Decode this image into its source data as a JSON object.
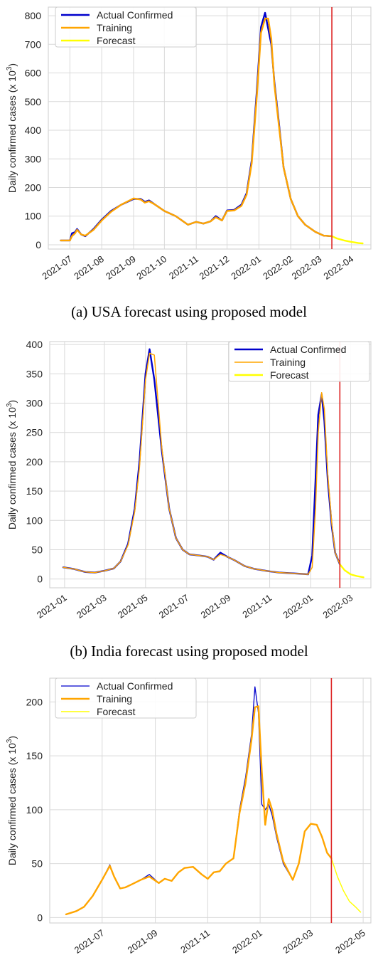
{
  "captions": [
    "(a) USA forecast using proposed model",
    "(b) India forecast using proposed model"
  ],
  "colors": {
    "actual": "#0000cc",
    "training": "#ffa500",
    "forecast": "#ffff00",
    "split": "#dd2222",
    "grid": "#d9d9d9"
  },
  "chart_data": [
    {
      "type": "line",
      "title": "",
      "xlabel": "",
      "ylabel": "Daily confirmed cases (x 10^3)",
      "ylabel_main": "Daily confirmed cases (x 10",
      "ylabel_exp": "3",
      "ylabel_tail": ")",
      "ylim": [
        -15,
        830
      ],
      "xlim": [
        "2021-06-10",
        "2022-04-20"
      ],
      "grid": true,
      "legend": "top-left",
      "yticks": [
        0,
        100,
        200,
        300,
        400,
        500,
        600,
        700,
        800
      ],
      "xticks": [
        "2021-07",
        "2021-08",
        "2021-09",
        "2021-10",
        "2021-11",
        "2021-12",
        "2022-01",
        "2022-02",
        "2022-03",
        "2022-04"
      ],
      "split_date": "2022-03-13",
      "series": [
        {
          "name": "Actual Confirmed",
          "color": "#0000cc",
          "x": [
            "2021-06-22",
            "2021-07-01",
            "2021-07-03",
            "2021-07-06",
            "2021-07-08",
            "2021-07-12",
            "2021-07-16",
            "2021-07-24",
            "2021-08-01",
            "2021-08-10",
            "2021-08-20",
            "2021-09-01",
            "2021-09-08",
            "2021-09-12",
            "2021-09-16",
            "2021-09-22",
            "2021-10-01",
            "2021-10-12",
            "2021-10-24",
            "2021-11-01",
            "2021-11-08",
            "2021-11-15",
            "2021-11-20",
            "2021-11-26",
            "2021-12-01",
            "2021-12-08",
            "2021-12-15",
            "2021-12-20",
            "2021-12-25",
            "2021-12-30",
            "2022-01-03",
            "2022-01-07",
            "2022-01-10",
            "2022-01-13",
            "2022-01-16",
            "2022-01-20",
            "2022-01-25",
            "2022-02-01",
            "2022-02-08",
            "2022-02-15",
            "2022-02-25",
            "2022-03-05",
            "2022-03-13"
          ],
          "y": [
            15,
            15,
            40,
            44,
            55,
            36,
            30,
            55,
            88,
            118,
            140,
            160,
            160,
            150,
            155,
            140,
            118,
            100,
            70,
            80,
            74,
            82,
            100,
            85,
            120,
            122,
            140,
            180,
            295,
            540,
            760,
            810,
            755,
            700,
            570,
            440,
            270,
            160,
            100,
            70,
            45,
            32,
            30
          ]
        },
        {
          "name": "Training",
          "color": "#ffa500",
          "x": [
            "2021-06-22",
            "2021-07-01",
            "2021-07-03",
            "2021-07-06",
            "2021-07-08",
            "2021-07-12",
            "2021-07-16",
            "2021-07-24",
            "2021-08-01",
            "2021-08-10",
            "2021-08-20",
            "2021-09-01",
            "2021-09-08",
            "2021-09-12",
            "2021-09-16",
            "2021-09-22",
            "2021-10-01",
            "2021-10-12",
            "2021-10-24",
            "2021-11-01",
            "2021-11-08",
            "2021-11-15",
            "2021-11-20",
            "2021-11-26",
            "2021-12-01",
            "2021-12-08",
            "2021-12-15",
            "2021-12-20",
            "2021-12-25",
            "2021-12-30",
            "2022-01-03",
            "2022-01-07",
            "2022-01-10",
            "2022-01-13",
            "2022-01-16",
            "2022-01-20",
            "2022-01-25",
            "2022-02-01",
            "2022-02-08",
            "2022-02-15",
            "2022-02-25",
            "2022-03-05",
            "2022-03-13"
          ],
          "y": [
            15,
            15,
            30,
            40,
            52,
            36,
            32,
            52,
            85,
            115,
            140,
            162,
            158,
            147,
            152,
            140,
            118,
            100,
            70,
            80,
            74,
            82,
            96,
            85,
            118,
            120,
            136,
            175,
            285,
            520,
            740,
            790,
            790,
            720,
            560,
            430,
            270,
            160,
            100,
            70,
            45,
            32,
            30
          ]
        },
        {
          "name": "Forecast",
          "color": "#ffff00",
          "x": [
            "2022-03-13",
            "2022-03-18",
            "2022-03-25",
            "2022-04-01",
            "2022-04-08",
            "2022-04-12"
          ],
          "y": [
            30,
            22,
            15,
            10,
            6,
            5
          ]
        }
      ]
    },
    {
      "type": "line",
      "title": "",
      "xlabel": "",
      "ylabel": "Daily confirmed cases (x 10^3)",
      "ylabel_main": "Daily confirmed cases (x 10",
      "ylabel_exp": "3",
      "ylabel_tail": ")",
      "ylim": [
        -15,
        405
      ],
      "xlim": [
        "2020-12-10",
        "2022-03-31"
      ],
      "grid": true,
      "legend": "top-right",
      "yticks": [
        0,
        50,
        100,
        150,
        200,
        250,
        300,
        350,
        400
      ],
      "xticks": [
        "2021-01",
        "2021-03",
        "2021-05",
        "2021-07",
        "2021-09",
        "2021-11",
        "2022-01",
        "2022-03"
      ],
      "split_date": "2022-02-13",
      "series": [
        {
          "name": "Actual Confirmed",
          "color": "#0000cc",
          "x": [
            "2020-12-30",
            "2021-01-15",
            "2021-02-01",
            "2021-02-15",
            "2021-03-01",
            "2021-03-15",
            "2021-03-25",
            "2021-04-05",
            "2021-04-15",
            "2021-04-22",
            "2021-05-01",
            "2021-05-07",
            "2021-05-14",
            "2021-05-25",
            "2021-06-05",
            "2021-06-15",
            "2021-06-25",
            "2021-07-05",
            "2021-07-20",
            "2021-08-01",
            "2021-08-10",
            "2021-08-20",
            "2021-08-30",
            "2021-09-10",
            "2021-09-25",
            "2021-10-10",
            "2021-11-01",
            "2021-11-15",
            "2021-12-01",
            "2021-12-15",
            "2021-12-28",
            "2022-01-03",
            "2022-01-08",
            "2022-01-12",
            "2022-01-17",
            "2022-01-21",
            "2022-01-26",
            "2022-02-01",
            "2022-02-06",
            "2022-02-13"
          ],
          "y": [
            20,
            17,
            12,
            11,
            14,
            18,
            30,
            60,
            120,
            200,
            350,
            392,
            340,
            220,
            120,
            70,
            50,
            42,
            40,
            38,
            33,
            45,
            38,
            32,
            22,
            17,
            13,
            11,
            10,
            9,
            8,
            40,
            170,
            280,
            315,
            270,
            170,
            90,
            45,
            25
          ]
        },
        {
          "name": "Training",
          "color": "#ffa500",
          "x": [
            "2020-12-30",
            "2021-01-15",
            "2021-02-01",
            "2021-02-15",
            "2021-03-01",
            "2021-03-15",
            "2021-03-25",
            "2021-04-05",
            "2021-04-15",
            "2021-04-22",
            "2021-05-01",
            "2021-05-07",
            "2021-05-14",
            "2021-05-25",
            "2021-06-05",
            "2021-06-15",
            "2021-06-25",
            "2021-07-05",
            "2021-07-20",
            "2021-08-01",
            "2021-08-10",
            "2021-08-20",
            "2021-08-30",
            "2021-09-10",
            "2021-09-25",
            "2021-10-10",
            "2021-11-01",
            "2021-11-15",
            "2021-12-01",
            "2021-12-15",
            "2021-12-28",
            "2022-01-03",
            "2022-01-08",
            "2022-01-12",
            "2022-01-17",
            "2022-01-21",
            "2022-01-26",
            "2022-02-01",
            "2022-02-06",
            "2022-02-13"
          ],
          "y": [
            20,
            17,
            12,
            11,
            14,
            18,
            30,
            58,
            115,
            190,
            340,
            385,
            382,
            225,
            120,
            70,
            50,
            42,
            40,
            38,
            33,
            42,
            38,
            32,
            22,
            17,
            13,
            11,
            10,
            9,
            8,
            20,
            120,
            250,
            318,
            290,
            180,
            95,
            45,
            25
          ]
        },
        {
          "name": "Forecast",
          "color": "#ffff00",
          "x": [
            "2022-02-13",
            "2022-02-20",
            "2022-03-01",
            "2022-03-10",
            "2022-03-20"
          ],
          "y": [
            25,
            15,
            8,
            5,
            3
          ]
        }
      ]
    },
    {
      "type": "line",
      "title": "",
      "xlabel": "",
      "ylabel": "Daily confirmed cases (x 10^3)",
      "ylabel_main": "Daily confirmed cases (x 10",
      "ylabel_exp": "3",
      "ylabel_tail": ")",
      "ylim": [
        -5,
        222
      ],
      "xlim": [
        "2021-05-01",
        "2022-05-10"
      ],
      "grid": true,
      "legend": "top-left",
      "yticks": [
        0,
        50,
        100,
        150,
        200
      ],
      "xticks": [
        "2021-07",
        "2021-09",
        "2021-11",
        "2022-01",
        "2022-03",
        "2022-05"
      ],
      "split_date": "2022-03-25",
      "series": [
        {
          "name": "Actual Confirmed",
          "color": "#0000cc",
          "x": [
            "2021-05-20",
            "2021-06-01",
            "2021-06-10",
            "2021-06-20",
            "2021-07-01",
            "2021-07-10",
            "2021-07-15",
            "2021-07-22",
            "2021-07-28",
            "2021-08-05",
            "2021-08-15",
            "2021-08-25",
            "2021-09-05",
            "2021-09-12",
            "2021-09-20",
            "2021-09-28",
            "2021-10-05",
            "2021-10-15",
            "2021-10-25",
            "2021-11-01",
            "2021-11-08",
            "2021-11-15",
            "2021-11-22",
            "2021-12-01",
            "2021-12-08",
            "2021-12-15",
            "2021-12-22",
            "2021-12-26",
            "2021-12-30",
            "2022-01-03",
            "2022-01-07",
            "2022-01-11",
            "2022-01-15",
            "2022-01-20",
            "2022-01-28",
            "2022-02-08",
            "2022-02-15",
            "2022-02-22",
            "2022-03-01",
            "2022-03-08",
            "2022-03-14",
            "2022-03-20",
            "2022-03-25"
          ],
          "y": [
            3,
            6,
            10,
            20,
            35,
            49,
            38,
            27,
            28,
            31,
            35,
            40,
            32,
            36,
            34,
            42,
            46,
            47,
            40,
            36,
            42,
            43,
            50,
            55,
            100,
            130,
            170,
            214,
            190,
            105,
            100,
            105,
            95,
            75,
            50,
            35,
            50,
            80,
            87,
            86,
            75,
            60,
            55
          ]
        },
        {
          "name": "Training",
          "color": "#ffa500",
          "x": [
            "2021-05-20",
            "2021-06-01",
            "2021-06-10",
            "2021-06-20",
            "2021-07-01",
            "2021-07-10",
            "2021-07-15",
            "2021-07-22",
            "2021-07-28",
            "2021-08-05",
            "2021-08-15",
            "2021-08-25",
            "2021-09-05",
            "2021-09-12",
            "2021-09-20",
            "2021-09-28",
            "2021-10-05",
            "2021-10-15",
            "2021-10-25",
            "2021-11-01",
            "2021-11-08",
            "2021-11-15",
            "2021-11-22",
            "2021-12-01",
            "2021-12-08",
            "2021-12-15",
            "2021-12-22",
            "2021-12-26",
            "2021-12-30",
            "2022-01-03",
            "2022-01-07",
            "2022-01-11",
            "2022-01-15",
            "2022-01-20",
            "2022-01-28",
            "2022-02-08",
            "2022-02-15",
            "2022-02-22",
            "2022-03-01",
            "2022-03-08",
            "2022-03-14",
            "2022-03-20",
            "2022-03-25"
          ],
          "y": [
            3,
            6,
            10,
            20,
            35,
            48,
            38,
            27,
            28,
            31,
            35,
            38,
            32,
            36,
            34,
            42,
            46,
            47,
            40,
            36,
            42,
            43,
            50,
            55,
            97,
            125,
            165,
            195,
            196,
            135,
            86,
            110,
            100,
            78,
            52,
            35,
            50,
            80,
            87,
            86,
            75,
            60,
            55
          ]
        },
        {
          "name": "Forecast",
          "color": "#ffff00",
          "x": [
            "2022-03-25",
            "2022-04-01",
            "2022-04-08",
            "2022-04-15",
            "2022-04-22",
            "2022-04-28"
          ],
          "y": [
            55,
            38,
            25,
            15,
            10,
            5
          ]
        }
      ]
    }
  ]
}
